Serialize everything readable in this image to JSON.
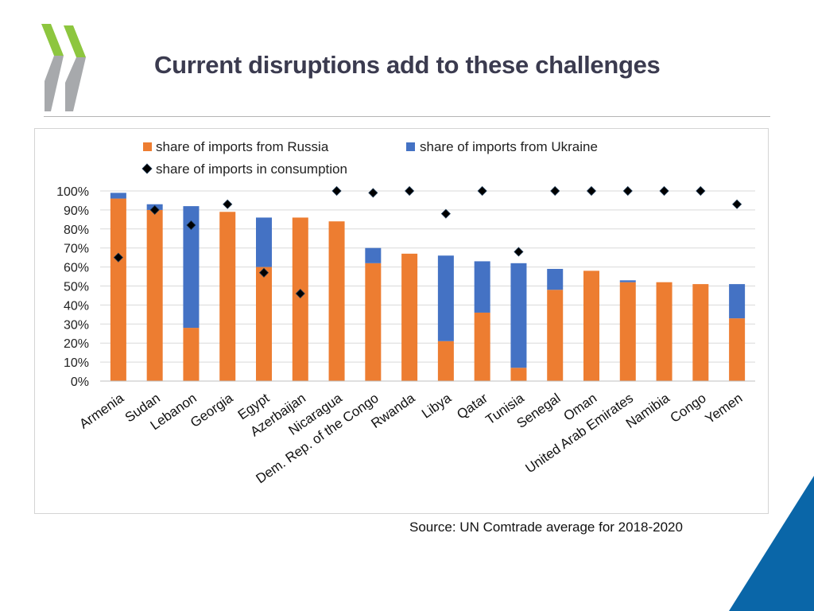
{
  "slide": {
    "title": "Current disruptions add to these challenges",
    "source": "Source: UN Comtrade average for 2018-2020"
  },
  "colors": {
    "russia": "#ED7D31",
    "ukraine": "#4472C4",
    "marker": "#000000",
    "logo_green": "#8DC63F",
    "logo_grey": "#A7A9AC",
    "corner_blue": "#0A66A8",
    "title_text": "#3b3b4f"
  },
  "logo": {
    "icon": "chevron-logo-icon"
  },
  "chart_data": {
    "type": "bar",
    "stacked": true,
    "title": "",
    "xlabel": "",
    "ylabel": "",
    "ylim": [
      0,
      100
    ],
    "yticks": [
      0,
      10,
      20,
      30,
      40,
      50,
      60,
      70,
      80,
      90,
      100
    ],
    "ytick_labels": [
      "0%",
      "10%",
      "20%",
      "30%",
      "40%",
      "50%",
      "60%",
      "70%",
      "80%",
      "90%",
      "100%"
    ],
    "grid": true,
    "legend_position": "top",
    "categories": [
      "Armenia",
      "Sudan",
      "Lebanon",
      "Georgia",
      "Egypt",
      "Azerbaijan",
      "Nicaragua",
      "Dem. Rep. of the Congo",
      "Rwanda",
      "Libya",
      "Qatar",
      "Tunisia",
      "Senegal",
      "Oman",
      "United Arab Emirates",
      "Namibia",
      "Congo",
      "Yemen"
    ],
    "series": [
      {
        "name": "share of imports from Russia",
        "kind": "bar",
        "values": [
          96,
          90,
          28,
          89,
          60,
          86,
          84,
          62,
          67,
          21,
          36,
          7,
          48,
          58,
          52,
          52,
          51,
          33
        ]
      },
      {
        "name": "share of imports from Ukraine",
        "kind": "bar",
        "values": [
          3,
          3,
          64,
          0,
          26,
          0,
          0,
          8,
          0,
          45,
          27,
          55,
          11,
          0,
          1,
          0,
          0,
          18
        ]
      },
      {
        "name": "share of imports in consumption",
        "kind": "marker",
        "values": [
          65,
          90,
          82,
          93,
          57,
          46,
          100,
          99,
          100,
          88,
          100,
          68,
          100,
          100,
          100,
          100,
          100,
          93
        ]
      }
    ]
  }
}
